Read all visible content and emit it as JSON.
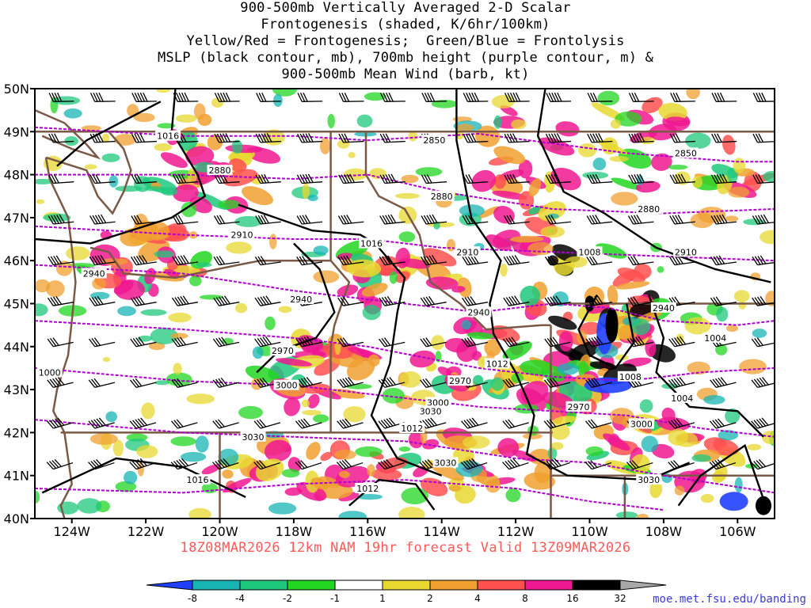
{
  "title": {
    "lines": [
      "900-500mb Vertically Averaged 2-D Scalar",
      "Frontogenesis (shaded, K/6hr/100km)",
      "Yellow/Red = Frontogenesis;  Green/Blue = Frontolysis",
      "MSLP (black contour, mb), 700mb height (purple contour, m) &",
      "900-500mb Mean Wind (barb, kt)"
    ]
  },
  "map": {
    "lat_labels": [
      "50N",
      "49N",
      "48N",
      "47N",
      "46N",
      "45N",
      "44N",
      "43N",
      "42N",
      "41N",
      "40N"
    ],
    "lon_labels": [
      "124W",
      "122W",
      "120W",
      "118W",
      "116W",
      "114W",
      "112W",
      "110W",
      "108W",
      "106W"
    ],
    "extent": {
      "lon_min": -125,
      "lon_max": -105,
      "lat_min": 40,
      "lat_max": 50
    },
    "height_labels": [
      "2850",
      "2850",
      "2880",
      "2880",
      "2880",
      "2910",
      "2910",
      "2910",
      "2940",
      "2940",
      "2940",
      "2940",
      "2970",
      "2970",
      "2970",
      "3000",
      "3000",
      "3000",
      "3030",
      "3030",
      "3030",
      "3030",
      "1000"
    ],
    "pressure_labels": [
      "1016",
      "1016",
      "1016",
      "1012",
      "1012",
      "1012",
      "1008",
      "1008",
      "1004",
      "1004"
    ],
    "colors": {
      "height_contour": "#b000d0",
      "pressure_contour": "#000000",
      "borders": "#7a5a46",
      "frame": "#000000"
    }
  },
  "footer": {
    "run_info": "18Z08MAR2026 12km NAM 19hr forecast Valid 13Z09MAR2026",
    "credit": "moe.met.fsu.edu/banding"
  },
  "colorbar": {
    "labels": [
      "-8",
      "-4",
      "-2",
      "-1",
      "1",
      "2",
      "4",
      "8",
      "16",
      "32"
    ],
    "colors": [
      "#2040ff",
      "#18b4b4",
      "#1ec87c",
      "#22d622",
      "#ffffff",
      "#e8d830",
      "#f0a030",
      "#ff5050",
      "#f01890",
      "#000000",
      "#a8a8a8"
    ]
  }
}
